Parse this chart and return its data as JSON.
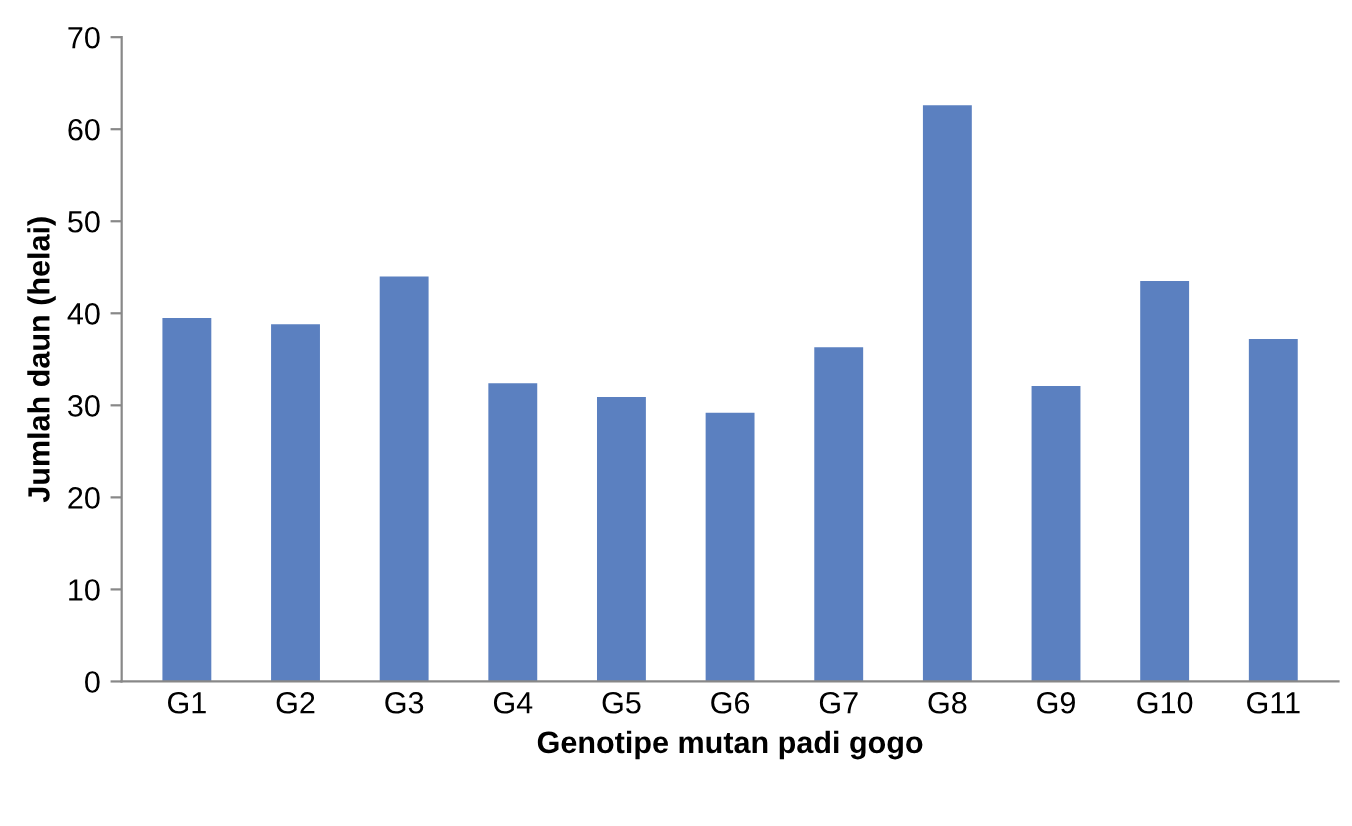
{
  "chart_data": {
    "type": "bar",
    "xlabel": "Genotipe mutan padi gogo",
    "ylabel": "Jumlah daun (helai)",
    "categories": [
      "G1",
      "G2",
      "G3",
      "G4",
      "G5",
      "G6",
      "G7",
      "G8",
      "G9",
      "G10",
      "G11"
    ],
    "values": [
      39.5,
      38.8,
      44.0,
      32.4,
      30.9,
      29.2,
      36.3,
      62.6,
      32.1,
      43.5,
      37.2
    ],
    "color": "#5b80c0",
    "ylim": [
      0,
      70
    ],
    "yticks": [
      0,
      10,
      20,
      30,
      40,
      50,
      60,
      70
    ],
    "grid": false,
    "legend": false
  }
}
